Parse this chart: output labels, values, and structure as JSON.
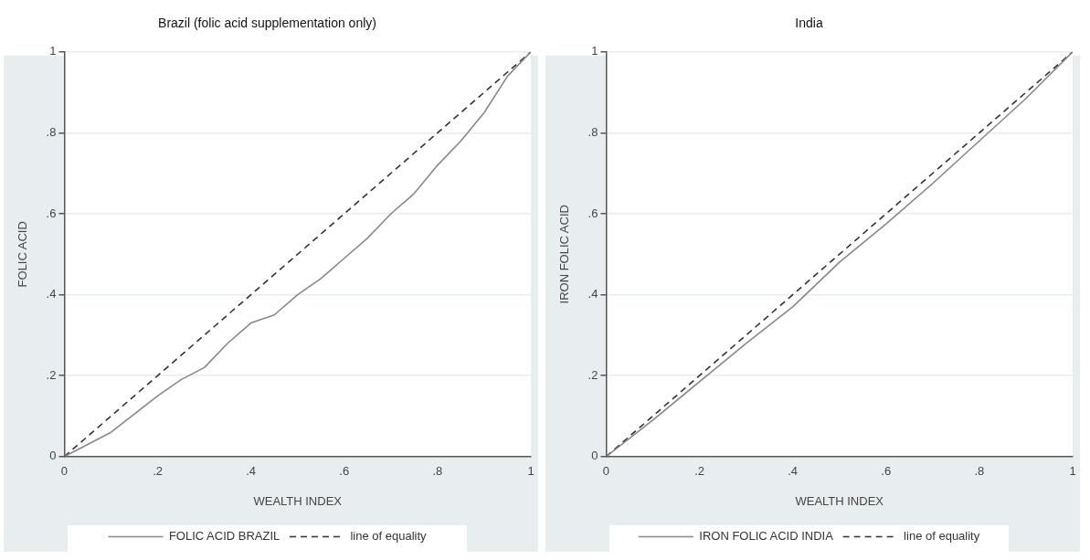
{
  "chart_data": [
    {
      "type": "line",
      "title": "Brazil (folic acid supplementation only)",
      "xlabel": "WEALTH INDEX",
      "ylabel": "FOLIC ACID",
      "xlim": [
        0,
        1
      ],
      "ylim": [
        0,
        1
      ],
      "xticks": [
        {
          "value": 0,
          "label": "0"
        },
        {
          "value": 0.2,
          "label": ".2"
        },
        {
          "value": 0.4,
          "label": ".4"
        },
        {
          "value": 0.6,
          "label": ".6"
        },
        {
          "value": 0.8,
          "label": ".8"
        },
        {
          "value": 1,
          "label": "1"
        }
      ],
      "yticks": [
        {
          "value": 0,
          "label": "0"
        },
        {
          "value": 0.2,
          "label": ".2"
        },
        {
          "value": 0.4,
          "label": ".4"
        },
        {
          "value": 0.6,
          "label": ".6"
        },
        {
          "value": 0.8,
          "label": ".8"
        },
        {
          "value": 1,
          "label": "1"
        }
      ],
      "grid": "y",
      "legend": "bottom",
      "marker": "none",
      "series": [
        {
          "name": "FOLIC ACID BRAZIL",
          "color": "#888888",
          "line_style": "solid",
          "x": [
            0,
            0.1,
            0.2,
            0.25,
            0.3,
            0.35,
            0.4,
            0.45,
            0.5,
            0.55,
            0.6,
            0.65,
            0.7,
            0.75,
            0.8,
            0.85,
            0.9,
            0.95,
            1
          ],
          "values": [
            0,
            0.06,
            0.15,
            0.19,
            0.22,
            0.28,
            0.33,
            0.35,
            0.4,
            0.44,
            0.49,
            0.54,
            0.6,
            0.65,
            0.72,
            0.78,
            0.85,
            0.94,
            1
          ]
        },
        {
          "name": "line of equality",
          "color": "#333333",
          "line_style": "dashed",
          "x": [
            0,
            1
          ],
          "values": [
            0,
            1
          ]
        }
      ]
    },
    {
      "type": "line",
      "title": "India",
      "xlabel": "WEALTH INDEX",
      "ylabel": "IRON FOLIC ACID",
      "xlim": [
        0,
        1
      ],
      "ylim": [
        0,
        1
      ],
      "xticks": [
        {
          "value": 0,
          "label": "0"
        },
        {
          "value": 0.2,
          "label": ".2"
        },
        {
          "value": 0.4,
          "label": ".4"
        },
        {
          "value": 0.6,
          "label": ".6"
        },
        {
          "value": 0.8,
          "label": ".8"
        },
        {
          "value": 1,
          "label": "1"
        }
      ],
      "yticks": [
        {
          "value": 0,
          "label": "0"
        },
        {
          "value": 0.2,
          "label": ".2"
        },
        {
          "value": 0.4,
          "label": ".4"
        },
        {
          "value": 0.6,
          "label": ".6"
        },
        {
          "value": 0.8,
          "label": ".8"
        },
        {
          "value": 1,
          "label": "1"
        }
      ],
      "grid": "y",
      "legend": "bottom",
      "marker": "none",
      "series": [
        {
          "name": "IRON FOLIC ACID INDIA",
          "color": "#888888",
          "line_style": "solid",
          "x": [
            0,
            0.1,
            0.2,
            0.3,
            0.4,
            0.5,
            0.6,
            0.7,
            0.8,
            0.9,
            1
          ],
          "values": [
            0,
            0.09,
            0.185,
            0.28,
            0.37,
            0.48,
            0.575,
            0.675,
            0.78,
            0.885,
            1
          ]
        },
        {
          "name": "line of equality",
          "color": "#333333",
          "line_style": "dashed",
          "x": [
            0,
            1
          ],
          "values": [
            0,
            1
          ]
        }
      ]
    }
  ]
}
